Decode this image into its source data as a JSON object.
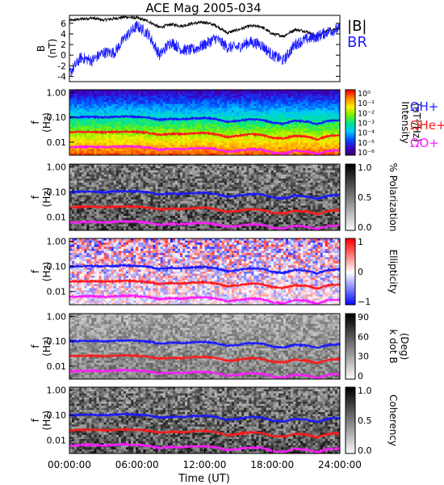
{
  "title": "ACE Mag 2005-034",
  "colors": {
    "B_total": "#000000",
    "B_R": "#1a1aff",
    "H_plus": "#1a1aff",
    "He_plus": "#ff1a1a",
    "O_plus": "#ff1aff",
    "bg": "#ffffff"
  },
  "x_axis": {
    "label": "Time (UT)",
    "ticks": [
      "00:00:00",
      "06:00:00",
      "12:00:00",
      "18:00:00",
      "24:00:00"
    ],
    "range_hours": [
      0,
      24
    ]
  },
  "legend_top": [
    "|B|",
    "BR"
  ],
  "legend_gyro": [
    "ΩH+",
    "ΩHe+",
    "ΩO+"
  ],
  "chart_data": [
    {
      "type": "line",
      "panel": "B",
      "ylabel": "B",
      "yunit": "(nT)",
      "ylim": [
        -5,
        7.5
      ],
      "yticks": [
        -4,
        -2,
        0,
        2,
        4,
        6
      ],
      "x_hours": [
        0,
        1,
        2,
        3,
        4,
        5,
        6,
        7,
        8,
        9,
        10,
        11,
        12,
        13,
        14,
        15,
        16,
        17,
        18,
        19,
        20,
        21,
        22,
        23,
        24
      ],
      "series": [
        {
          "name": "|B|",
          "color": "#000000",
          "values": [
            6.5,
            6.8,
            7.0,
            6.6,
            6.9,
            7.2,
            7.0,
            6.4,
            5.2,
            5.8,
            5.5,
            6.0,
            6.2,
            5.6,
            4.2,
            4.8,
            5.5,
            5.4,
            4.0,
            3.6,
            4.8,
            4.5,
            3.5,
            4.8,
            5.0
          ]
        },
        {
          "name": "BR",
          "color": "#1a1aff",
          "values": [
            -3.5,
            -0.5,
            -1.0,
            0.5,
            0.5,
            3.5,
            5.5,
            4.0,
            0.0,
            2.5,
            1.0,
            1.0,
            2.0,
            3.2,
            1.5,
            1.5,
            2.5,
            2.0,
            0.0,
            -1.0,
            2.0,
            3.0,
            3.5,
            4.5,
            5.0
          ]
        }
      ]
    },
    {
      "type": "heatmap",
      "panel": "Intensity",
      "ylabel": "f",
      "yunit": "(Hz)",
      "yscale": "log",
      "ylim": [
        0.003,
        1.3
      ],
      "yticks": [
        "1.00",
        "0.10",
        "0.01"
      ],
      "colorbar": {
        "label": "Intensity",
        "unit": "(nT²/Hz)",
        "ticks": [
          "10⁰",
          "10⁻¹",
          "10⁻²",
          "10⁻³",
          "10⁻⁴",
          "10⁻⁵",
          "10⁻⁶"
        ],
        "scale": "rainbow"
      }
    },
    {
      "type": "heatmap",
      "panel": "Polarization",
      "ylabel": "f",
      "yunit": "(Hz)",
      "yscale": "log",
      "ylim": [
        0.003,
        1.3
      ],
      "yticks": [
        "1.00",
        "0.10",
        "0.01"
      ],
      "colorbar": {
        "label": "% Polarization",
        "ticks": [
          "1.0",
          "0.5",
          "0.0"
        ],
        "scale": "gray"
      }
    },
    {
      "type": "heatmap",
      "panel": "Ellipticity",
      "ylabel": "f",
      "yunit": "(Hz)",
      "yscale": "log",
      "ylim": [
        0.003,
        1.3
      ],
      "yticks": [
        "1.00",
        "0.10",
        "0.01"
      ],
      "colorbar": {
        "label": "Ellipticity",
        "ticks": [
          "1",
          "0",
          "−1"
        ],
        "scale": "bwr"
      }
    },
    {
      "type": "heatmap",
      "panel": "kdotB",
      "ylabel": "f",
      "yunit": "(Hz)",
      "yscale": "log",
      "ylim": [
        0.003,
        1.3
      ],
      "yticks": [
        "1.00",
        "0.10",
        "0.01"
      ],
      "colorbar": {
        "label": "k dot B",
        "unit": "(Deg)",
        "ticks": [
          "90",
          "60",
          "30",
          "0"
        ],
        "scale": "gray"
      }
    },
    {
      "type": "heatmap",
      "panel": "Coherency",
      "ylabel": "f",
      "yunit": "(Hz)",
      "yscale": "log",
      "ylim": [
        0.003,
        1.3
      ],
      "yticks": [
        "1.00",
        "0.10",
        "0.01"
      ],
      "colorbar": {
        "label": "Coherency",
        "ticks": [
          "1.0",
          "0.5",
          "0.0"
        ],
        "scale": "gray"
      }
    }
  ],
  "gyrofrequency_hz": {
    "x_hours": [
      0,
      1,
      2,
      3,
      4,
      5,
      6,
      7,
      8,
      9,
      10,
      11,
      12,
      13,
      14,
      15,
      16,
      17,
      18,
      19,
      20,
      21,
      22,
      23,
      24
    ],
    "H_plus": [
      0.1,
      0.103,
      0.105,
      0.1,
      0.105,
      0.11,
      0.105,
      0.098,
      0.08,
      0.088,
      0.084,
      0.092,
      0.095,
      0.085,
      0.065,
      0.073,
      0.084,
      0.082,
      0.061,
      0.055,
      0.073,
      0.068,
      0.053,
      0.073,
      0.076
    ],
    "He_plus": [
      0.025,
      0.026,
      0.026,
      0.025,
      0.026,
      0.027,
      0.026,
      0.024,
      0.02,
      0.022,
      0.021,
      0.023,
      0.024,
      0.021,
      0.016,
      0.018,
      0.021,
      0.02,
      0.015,
      0.014,
      0.018,
      0.017,
      0.013,
      0.018,
      0.019
    ],
    "O_plus": [
      0.0062,
      0.0064,
      0.0066,
      0.0062,
      0.0066,
      0.0069,
      0.0066,
      0.0061,
      0.005,
      0.0055,
      0.0052,
      0.0058,
      0.0059,
      0.0053,
      0.0041,
      0.0046,
      0.0052,
      0.0051,
      0.0038,
      0.0034,
      0.0046,
      0.0043,
      0.0033,
      0.0046,
      0.0047
    ]
  }
}
